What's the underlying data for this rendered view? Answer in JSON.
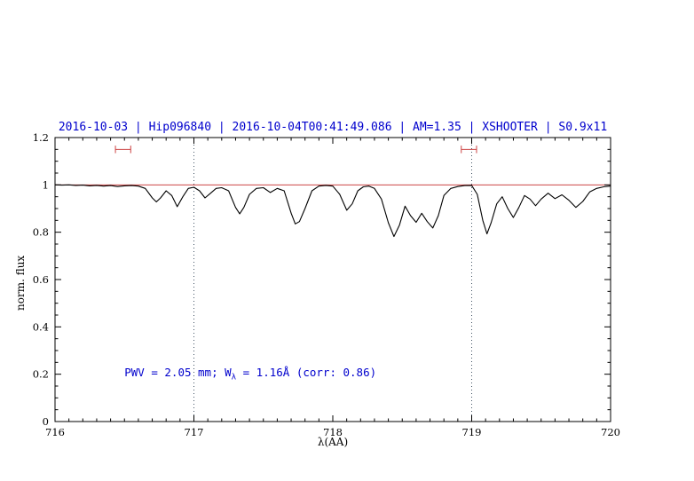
{
  "page": {
    "background": "#ffffff"
  },
  "chart_data": {
    "type": "line",
    "title": "2016-10-03 | Hip096840 | 2016-10-04T00:41:49.086 | AM=1.35 | XSHOOTER | S0.9x11",
    "title_color": "#0000cd",
    "xlabel": "λ(AA)",
    "ylabel": "norm. flux",
    "xlim": [
      716,
      720
    ],
    "ylim": [
      0,
      1.2
    ],
    "x_ticks": [
      716,
      717,
      718,
      719,
      720
    ],
    "x_tick_labels": [
      "716",
      "717",
      "718",
      "719",
      "720"
    ],
    "x_minor_step": 0.1,
    "y_ticks": [
      0,
      0.2,
      0.4,
      0.6,
      0.8,
      1,
      1.2
    ],
    "y_tick_labels": [
      "0",
      "0.2",
      "0.4",
      "0.6",
      "0.8",
      "1",
      "1.2"
    ],
    "y_minor_step": 0.05,
    "grid": false,
    "axis_color": "#000000",
    "continuum_line": {
      "y": 1,
      "color": "#cc4444"
    },
    "vlines": {
      "x": [
        717,
        719
      ],
      "color": "#445566",
      "style": "dotted"
    },
    "range_markers": {
      "color": "#cc4444",
      "y": 1.15,
      "cap_halfheight_flux": 0.016,
      "items": [
        {
          "x_center": 716.49,
          "half_width": 0.055
        },
        {
          "x_center": 718.98,
          "half_width": 0.055
        }
      ]
    },
    "series": [
      {
        "name": "normalized-telluric-spectrum",
        "color": "#000000",
        "x": [
          716.0,
          716.05,
          716.1,
          716.15,
          716.2,
          716.25,
          716.3,
          716.35,
          716.4,
          716.45,
          716.5,
          716.55,
          716.6,
          716.65,
          716.7,
          716.73,
          716.76,
          716.8,
          716.84,
          716.88,
          716.92,
          716.96,
          717.0,
          717.04,
          717.08,
          717.12,
          717.16,
          717.2,
          717.25,
          717.3,
          717.33,
          717.36,
          717.4,
          717.45,
          717.5,
          717.55,
          717.6,
          717.65,
          717.7,
          717.73,
          717.76,
          717.8,
          717.85,
          717.9,
          717.95,
          718.0,
          718.05,
          718.1,
          718.14,
          718.18,
          718.22,
          718.26,
          718.3,
          718.35,
          718.4,
          718.44,
          718.48,
          718.52,
          718.56,
          718.6,
          718.64,
          718.68,
          718.72,
          718.76,
          718.8,
          718.85,
          718.9,
          718.95,
          719.0,
          719.04,
          719.08,
          719.11,
          719.14,
          719.18,
          719.22,
          719.26,
          719.3,
          719.34,
          719.38,
          719.42,
          719.46,
          719.5,
          719.55,
          719.6,
          719.65,
          719.7,
          719.75,
          719.8,
          719.85,
          719.9,
          719.95,
          720.0
        ],
        "y": [
          1.0,
          0.999,
          1.0,
          0.998,
          0.999,
          0.996,
          0.998,
          0.995,
          0.997,
          0.993,
          0.996,
          0.997,
          0.995,
          0.985,
          0.945,
          0.928,
          0.945,
          0.975,
          0.955,
          0.908,
          0.95,
          0.985,
          0.99,
          0.975,
          0.945,
          0.965,
          0.985,
          0.988,
          0.975,
          0.905,
          0.878,
          0.905,
          0.96,
          0.985,
          0.988,
          0.968,
          0.985,
          0.975,
          0.88,
          0.835,
          0.845,
          0.9,
          0.975,
          0.995,
          0.998,
          0.995,
          0.96,
          0.893,
          0.92,
          0.975,
          0.992,
          0.995,
          0.985,
          0.94,
          0.84,
          0.782,
          0.83,
          0.91,
          0.87,
          0.842,
          0.88,
          0.845,
          0.818,
          0.87,
          0.955,
          0.985,
          0.993,
          0.997,
          0.998,
          0.96,
          0.85,
          0.793,
          0.84,
          0.92,
          0.95,
          0.9,
          0.862,
          0.905,
          0.955,
          0.94,
          0.912,
          0.94,
          0.965,
          0.942,
          0.958,
          0.935,
          0.905,
          0.93,
          0.97,
          0.985,
          0.992,
          0.995
        ]
      }
    ],
    "annotation": {
      "prefix": "PWV = 2.05 mm; W",
      "sub": "λ",
      "suffix": " = 1.16Å (corr: 0.86)",
      "x": 716.5,
      "y": 0.2,
      "color": "#0000cd"
    }
  }
}
